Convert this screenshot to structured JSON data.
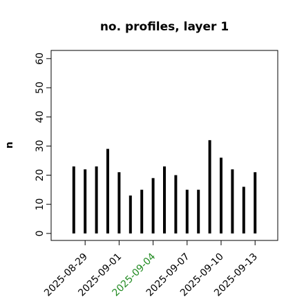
{
  "chart_data": {
    "type": "bar",
    "title": "no. profiles, layer 1",
    "y_label": "n",
    "x": [
      "2025-08-28",
      "2025-08-29",
      "2025-08-30",
      "2025-08-31",
      "2025-09-01",
      "2025-09-02",
      "2025-09-03",
      "2025-09-04",
      "2025-09-05",
      "2025-09-06",
      "2025-09-07",
      "2025-09-08",
      "2025-09-09",
      "2025-09-10",
      "2025-09-11",
      "2025-09-12",
      "2025-09-13"
    ],
    "values": [
      23,
      22,
      23,
      29,
      21,
      13,
      15,
      19,
      23,
      20,
      15,
      15,
      32,
      26,
      22,
      16,
      21
    ],
    "color": "#000000",
    "xlim": [
      "2025-08-26",
      "2025-09-15"
    ],
    "xticks": [
      "2025-08-29",
      "2025-09-01",
      "2025-09-04",
      "2025-09-07",
      "2025-09-10",
      "2025-09-13"
    ],
    "highlight_tick": "2025-09-04",
    "highlight_color": "#228b22",
    "ylim": [
      -2.4,
      62.8
    ],
    "yticks": [
      0,
      10,
      20,
      30,
      40,
      50,
      60
    ],
    "grid": false
  }
}
